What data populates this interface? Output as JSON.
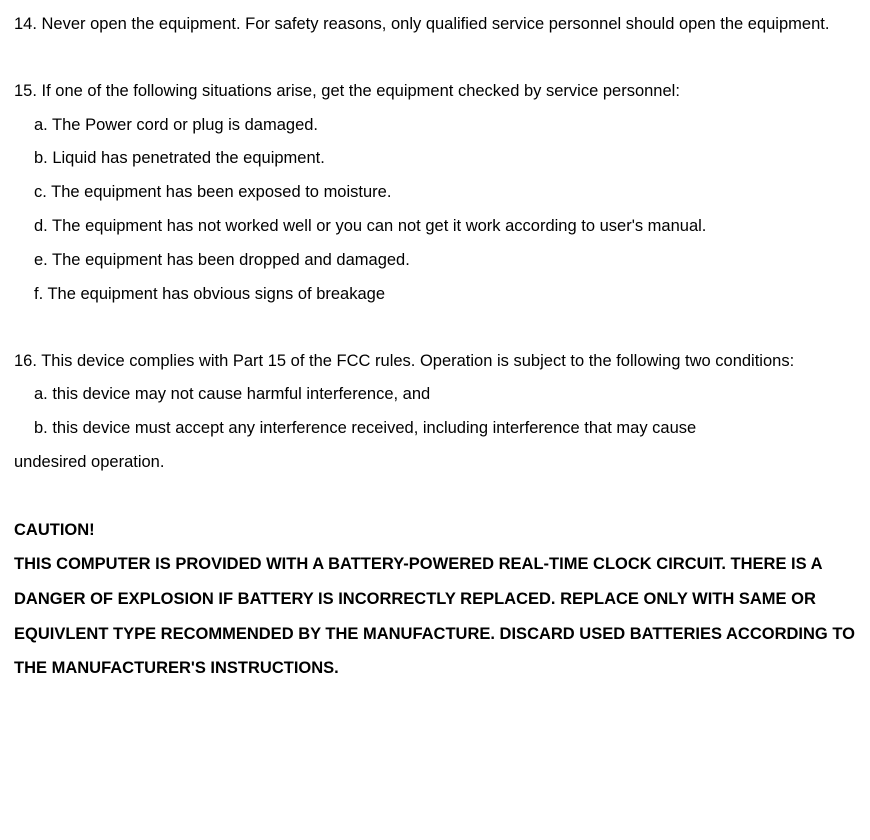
{
  "colors": {
    "text": "#000000",
    "background": "#ffffff"
  },
  "typography": {
    "font_family": "Arial, Helvetica, sans-serif",
    "font_size_pt": 12,
    "line_height": 2.05,
    "bold_weight": 700,
    "normal_weight": 400
  },
  "item14": "14. Never open the equipment. For safety reasons, only qualified service personnel should open the equipment.",
  "item15": {
    "lead": "15. If one of the following situations arise, get the equipment checked by service personnel:",
    "a": "a. The Power cord or plug is damaged.",
    "b": "b. Liquid has penetrated the equipment.",
    "c": "c. The equipment has been exposed to moisture.",
    "d": "d. The equipment has not worked well or you can not get it work according to user's manual.",
    "e": "e. The equipment has been dropped and damaged.",
    "f": "f. The equipment has obvious signs of breakage"
  },
  "item16": {
    "lead": "16. This device complies with Part 15 of the FCC rules. Operation is subject to the following two conditions:",
    "a": "a. this device may not cause harmful interference, and",
    "b_pre": "b. this device must accept any interference received, including interference that may cause",
    "b_post": "undesired operation."
  },
  "caution": {
    "title": "CAUTION!",
    "body": "THIS COMPUTER IS PROVIDED WITH A BATTERY-POWERED REAL-TIME CLOCK CIRCUIT. THERE IS A DANGER OF EXPLOSION IF BATTERY IS INCORRECTLY REPLACED. REPLACE ONLY WITH SAME OR EQUIVLENT TYPE RECOMMENDED BY THE MANUFACTURE. DISCARD USED BATTERIES ACCORDING TO THE MANUFACTURER'S INSTRUCTIONS."
  }
}
